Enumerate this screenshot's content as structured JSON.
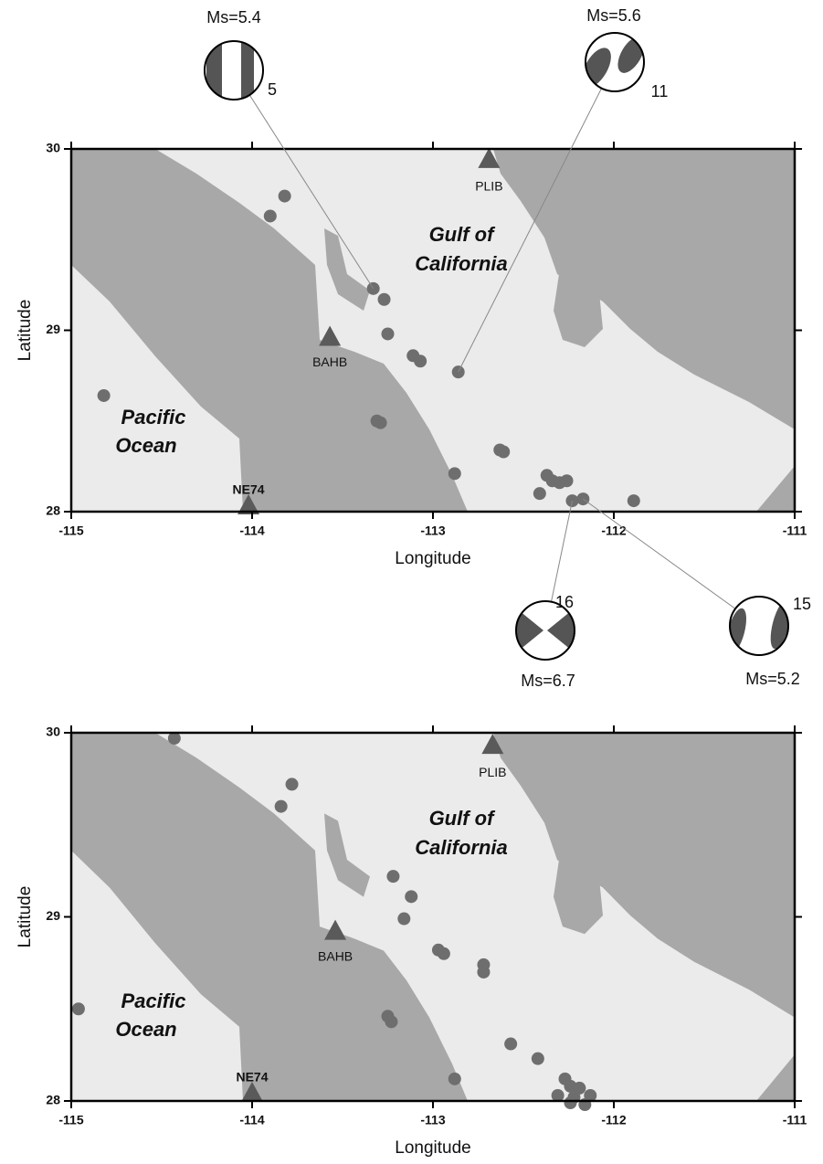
{
  "panels": [
    {
      "xlabel": "Longitude",
      "ylabel": "Latitude",
      "xlim": [
        -115,
        -111
      ],
      "ylim": [
        28,
        30
      ],
      "xticks": [
        -115,
        -114,
        -113,
        -112,
        -111
      ],
      "yticks": [
        28,
        29,
        30
      ],
      "region_labels": [
        [
          "Gulf of",
          "California"
        ],
        [
          "Pacific",
          "Ocean"
        ]
      ],
      "stations": [
        {
          "name": "PLIB",
          "lon": -112.69,
          "lat": 29.94
        },
        {
          "name": "BAHB",
          "lon": -113.57,
          "lat": 28.96
        },
        {
          "name": "NE74",
          "lon": -114.02,
          "lat": 28.03
        }
      ],
      "events": {
        "lon": [
          -113.82,
          -113.9,
          -113.33,
          -113.27,
          -113.25,
          -113.11,
          -113.07,
          -112.86,
          -113.31,
          -113.29,
          -114.82,
          -112.63,
          -112.88,
          -112.37,
          -112.34,
          -112.3,
          -112.26,
          -112.41,
          -112.23,
          -112.17,
          -111.89,
          -112.61
        ],
        "lat": [
          29.74,
          29.63,
          29.23,
          29.17,
          28.98,
          28.86,
          28.83,
          28.77,
          28.5,
          28.49,
          28.64,
          28.34,
          28.21,
          28.2,
          28.17,
          28.16,
          28.17,
          28.1,
          28.06,
          28.07,
          28.06,
          28.33
        ]
      },
      "mechanisms": [
        {
          "label": "Ms=5.4",
          "number": 5,
          "lon": -113.33,
          "lat": 29.23
        },
        {
          "label": "Ms=5.6",
          "number": 11,
          "lon": -112.86,
          "lat": 28.77
        },
        {
          "label": "Ms=6.7",
          "number": 16,
          "lon": -112.23,
          "lat": 28.06
        },
        {
          "label": "Ms=5.2",
          "number": 15,
          "lon": -112.17,
          "lat": 28.07
        }
      ]
    },
    {
      "xlabel": "Longitude",
      "ylabel": "Latitude",
      "xlim": [
        -115,
        -111
      ],
      "ylim": [
        28,
        30
      ],
      "xticks": [
        -115,
        -114,
        -113,
        -112,
        -111
      ],
      "yticks": [
        28,
        29,
        30
      ],
      "region_labels": [
        [
          "Gulf of",
          "California"
        ],
        [
          "Pacific",
          "Ocean"
        ]
      ],
      "stations": [
        {
          "name": "PLIB",
          "lon": -112.67,
          "lat": 29.93
        },
        {
          "name": "BAHB",
          "lon": -113.54,
          "lat": 28.92
        },
        {
          "name": "NE74",
          "lon": -114.0,
          "lat": 28.04
        }
      ],
      "events": {
        "lon": [
          -114.43,
          -113.78,
          -113.84,
          -113.22,
          -113.12,
          -113.16,
          -112.97,
          -112.94,
          -112.72,
          -112.72,
          -114.96,
          -113.25,
          -113.23,
          -112.57,
          -112.42,
          -112.88,
          -112.27,
          -112.24,
          -112.19,
          -112.31,
          -112.22,
          -112.13,
          -112.24,
          -112.16
        ],
        "lat": [
          29.97,
          29.72,
          29.6,
          29.22,
          29.11,
          28.99,
          28.82,
          28.8,
          28.74,
          28.7,
          28.5,
          28.46,
          28.43,
          28.31,
          28.23,
          28.12,
          28.12,
          28.08,
          28.07,
          28.03,
          28.02,
          28.03,
          27.99,
          27.98
        ]
      }
    }
  ]
}
